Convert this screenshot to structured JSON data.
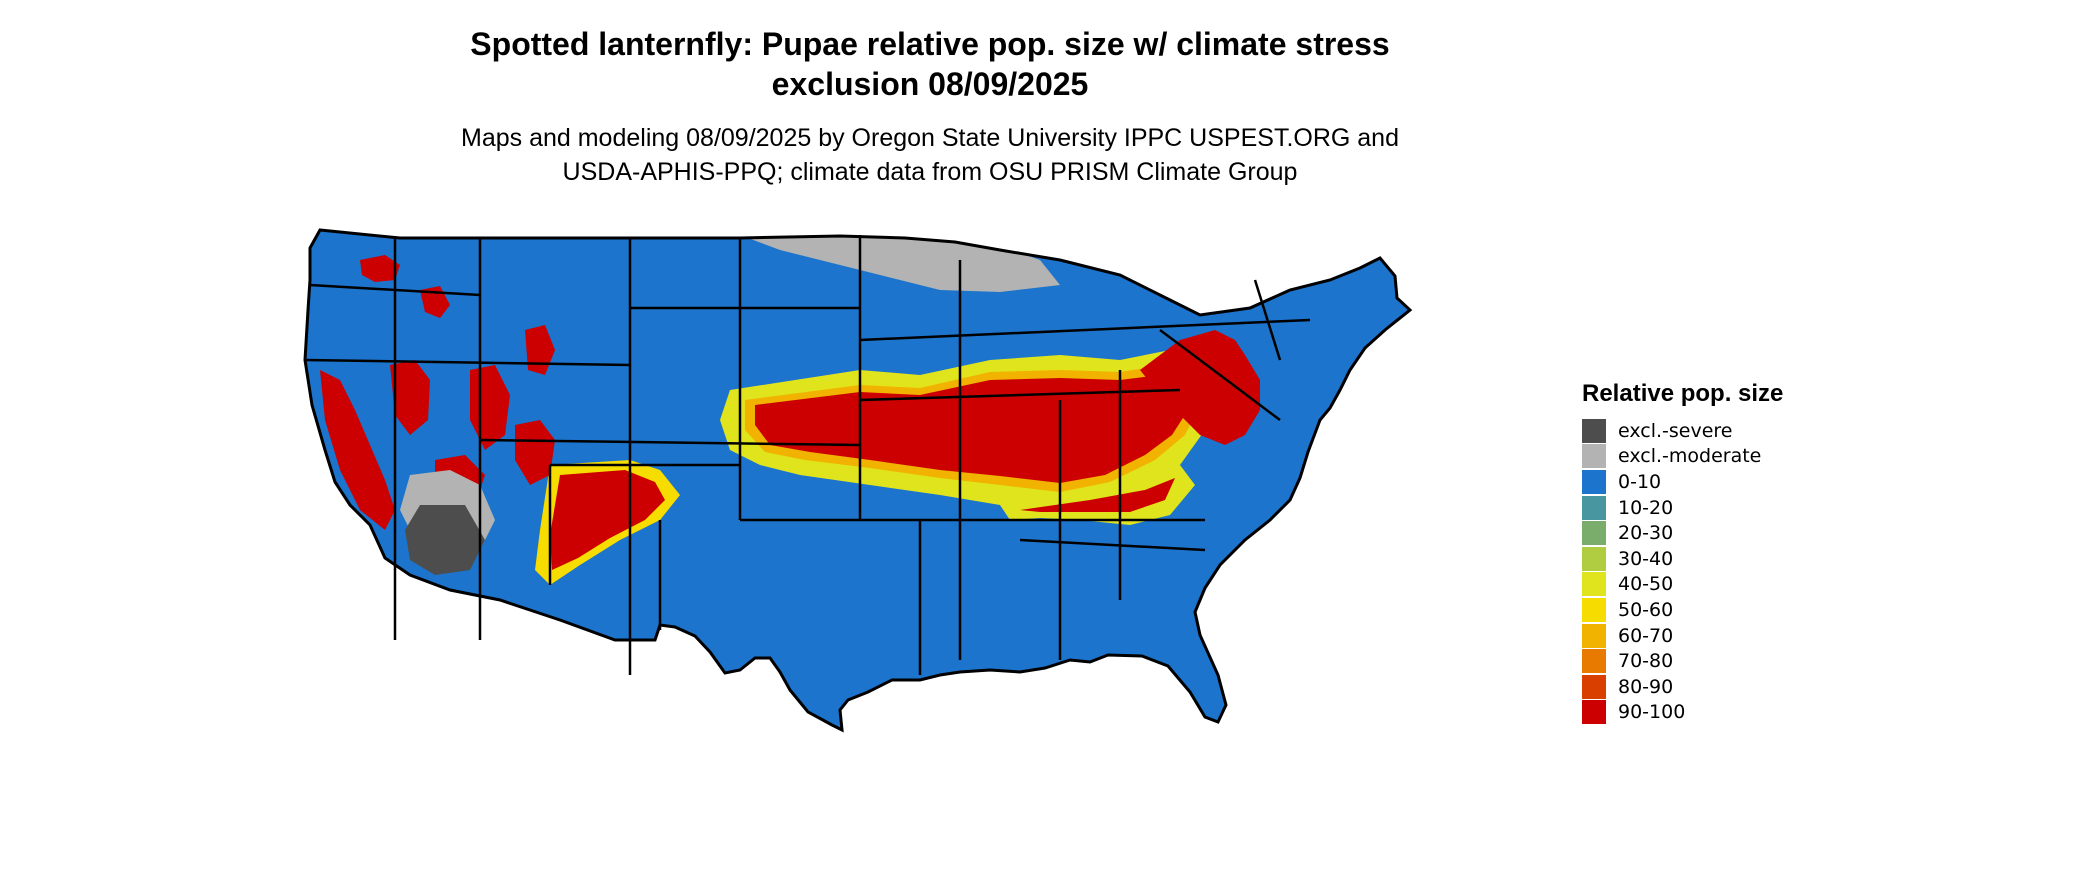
{
  "title_line1": "Spotted lanternfly: Pupae relative pop. size w/ climate stress",
  "title_line2": "exclusion 08/09/2025",
  "subtitle_line1": "Maps and modeling 08/09/2025 by Oregon State University IPPC USPEST.ORG and",
  "subtitle_line2": "USDA-APHIS-PPQ; climate data from OSU PRISM Climate Group",
  "legend": {
    "title": "Relative pop. size",
    "items": [
      {
        "label": "excl.-severe",
        "color": "#4d4d4d"
      },
      {
        "label": "excl.-moderate",
        "color": "#b3b3b3"
      },
      {
        "label": "0-10",
        "color": "#1c74cc"
      },
      {
        "label": "10-20",
        "color": "#4796a0"
      },
      {
        "label": "20-30",
        "color": "#7aac6c"
      },
      {
        "label": "30-40",
        "color": "#b0cc40"
      },
      {
        "label": "40-50",
        "color": "#e0e41c"
      },
      {
        "label": "50-60",
        "color": "#f7dc00"
      },
      {
        "label": "60-70",
        "color": "#f2b200"
      },
      {
        "label": "70-80",
        "color": "#e87a00"
      },
      {
        "label": "80-90",
        "color": "#d94000"
      },
      {
        "label": "90-100",
        "color": "#cc0000"
      }
    ]
  }
}
